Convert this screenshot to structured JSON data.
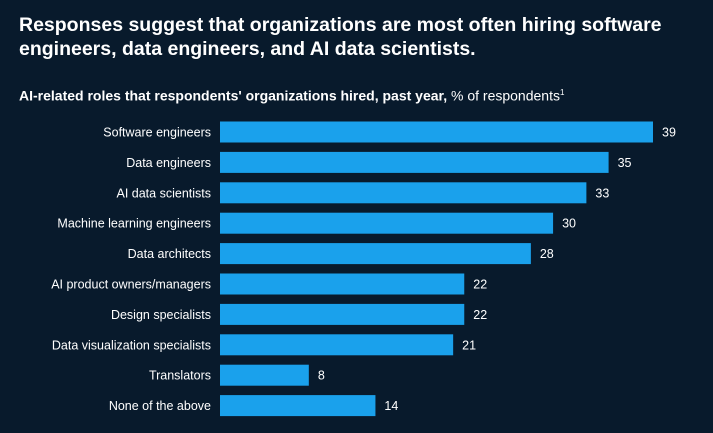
{
  "headline": "Responses suggest that organizations are most often hiring software engineers, data engineers, and AI data scientists.",
  "chart_data": {
    "type": "bar",
    "orientation": "horizontal",
    "title": "AI-related roles that respondents' organizations hired, past year,",
    "unit": "% of respondents",
    "footnote_marker": "1",
    "categories": [
      "Software engineers",
      "Data engineers",
      "AI data scientists",
      "Machine learning engineers",
      "Data architects",
      "AI product owners/managers",
      "Design specialists",
      "Data visualization specialists",
      "Translators",
      "None of the above"
    ],
    "values": [
      39,
      35,
      33,
      30,
      28,
      22,
      22,
      21,
      8,
      14
    ],
    "bar_color": "#1aa1ec",
    "xlim": [
      0,
      39
    ],
    "grid": false,
    "legend": "none"
  }
}
